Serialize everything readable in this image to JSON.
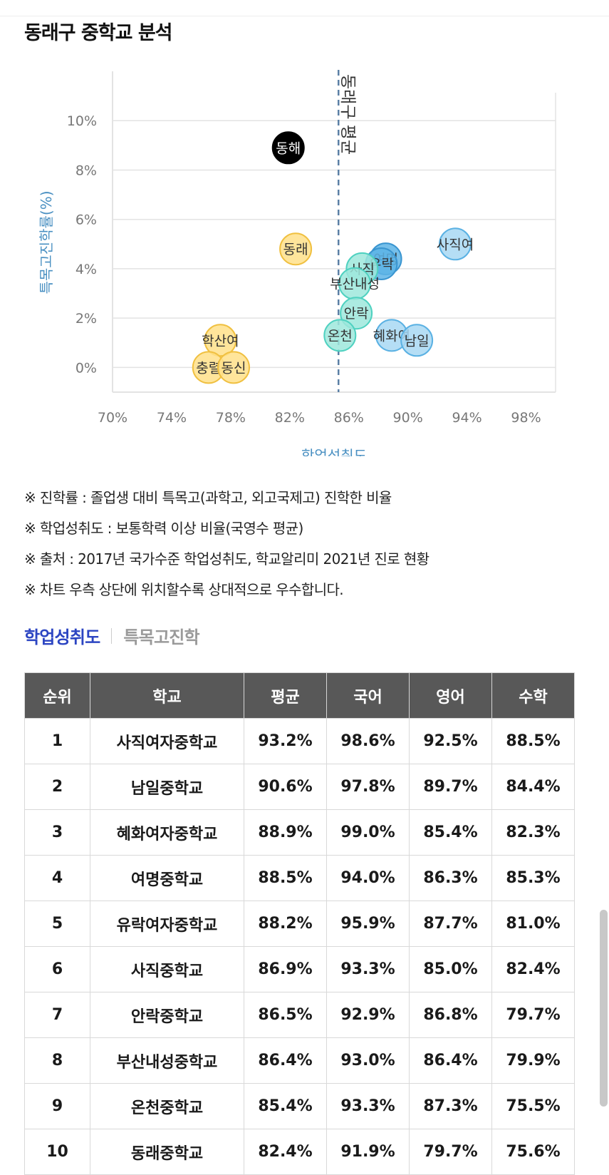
{
  "page": {
    "title": "동래구 중학교 분석"
  },
  "colors": {
    "yellow_fill": "#ffe08a",
    "yellow_stroke": "#f0c040",
    "teal_fill": "#9ee8dc",
    "teal_stroke": "#4fd1c0",
    "blue_fill": "#a8d8f3",
    "blue_stroke": "#5ab1e3",
    "deepblue_fill": "#5db4e6",
    "deepblue_stroke": "#3a95d0",
    "black_fill": "#000000",
    "axis_label": "#4a90c2",
    "avg_line": "#5a7fa5",
    "tab_active": "#2c45c2"
  },
  "chart_data": {
    "type": "scatter",
    "xlabel": "학업성취도",
    "ylabel": "특목고진학률(%)",
    "x_ticks": [
      "70%",
      "74%",
      "78%",
      "82%",
      "86%",
      "90%",
      "94%",
      "98%"
    ],
    "y_ticks": [
      "0%",
      "2%",
      "4%",
      "6%",
      "8%",
      "10%"
    ],
    "xlim": [
      70,
      100
    ],
    "ylim": [
      -1,
      12
    ],
    "grid": true,
    "reference_line": {
      "label": "동래구 평균",
      "x": 85.3
    },
    "points": [
      {
        "label": "동해",
        "x": 81.9,
        "y": 8.9,
        "color": "black"
      },
      {
        "label": "동래",
        "x": 82.4,
        "y": 4.8,
        "color": "yellow"
      },
      {
        "label": "학산여",
        "x": 77.3,
        "y": 1.1,
        "color": "yellow"
      },
      {
        "label": "충렬",
        "x": 76.5,
        "y": 0.0,
        "color": "yellow"
      },
      {
        "label": "동신",
        "x": 78.2,
        "y": 0.0,
        "color": "yellow"
      },
      {
        "label": "사직여",
        "x": 93.2,
        "y": 5.0,
        "color": "blue"
      },
      {
        "label": "여명",
        "x": 88.5,
        "y": 4.4,
        "color": "deepblue"
      },
      {
        "label": "유락",
        "x": 88.2,
        "y": 4.2,
        "color": "deepblue"
      },
      {
        "label": "사직",
        "x": 86.9,
        "y": 4.0,
        "color": "teal"
      },
      {
        "label": "부산내성",
        "x": 86.4,
        "y": 3.4,
        "color": "teal"
      },
      {
        "label": "안락",
        "x": 86.5,
        "y": 2.2,
        "color": "teal"
      },
      {
        "label": "온천",
        "x": 85.4,
        "y": 1.3,
        "color": "teal"
      },
      {
        "label": "혜화여",
        "x": 88.9,
        "y": 1.3,
        "color": "blue"
      },
      {
        "label": "남일",
        "x": 90.6,
        "y": 1.1,
        "color": "blue"
      }
    ]
  },
  "notes": [
    "※ 진학률 : 졸업생 대비 특목고(과학고, 외고국제고) 진학한 비율",
    "※ 학업성취도 : 보통학력 이상 비율(국영수 평균)",
    "※ 출처 : 2017년 국가수준 학업성취도, 학교알리미 2021년 진로 현황",
    "※ 차트 우측 상단에 위치할수록 상대적으로 우수합니다."
  ],
  "tabs": {
    "active": "학업성취도",
    "inactive": "특목고진학"
  },
  "table": {
    "headers": [
      "순위",
      "학교",
      "평균",
      "국어",
      "영어",
      "수학"
    ],
    "rows": [
      [
        "1",
        "사직여자중학교",
        "93.2%",
        "98.6%",
        "92.5%",
        "88.5%"
      ],
      [
        "2",
        "남일중학교",
        "90.6%",
        "97.8%",
        "89.7%",
        "84.4%"
      ],
      [
        "3",
        "혜화여자중학교",
        "88.9%",
        "99.0%",
        "85.4%",
        "82.3%"
      ],
      [
        "4",
        "여명중학교",
        "88.5%",
        "94.0%",
        "86.3%",
        "85.3%"
      ],
      [
        "5",
        "유락여자중학교",
        "88.2%",
        "95.9%",
        "87.7%",
        "81.0%"
      ],
      [
        "6",
        "사직중학교",
        "86.9%",
        "93.3%",
        "85.0%",
        "82.4%"
      ],
      [
        "7",
        "안락중학교",
        "86.5%",
        "92.9%",
        "86.8%",
        "79.7%"
      ],
      [
        "8",
        "부산내성중학교",
        "86.4%",
        "93.0%",
        "86.4%",
        "79.9%"
      ],
      [
        "9",
        "온천중학교",
        "85.4%",
        "93.3%",
        "87.3%",
        "75.5%"
      ],
      [
        "10",
        "동래중학교",
        "82.4%",
        "91.9%",
        "79.7%",
        "75.6%"
      ]
    ]
  }
}
